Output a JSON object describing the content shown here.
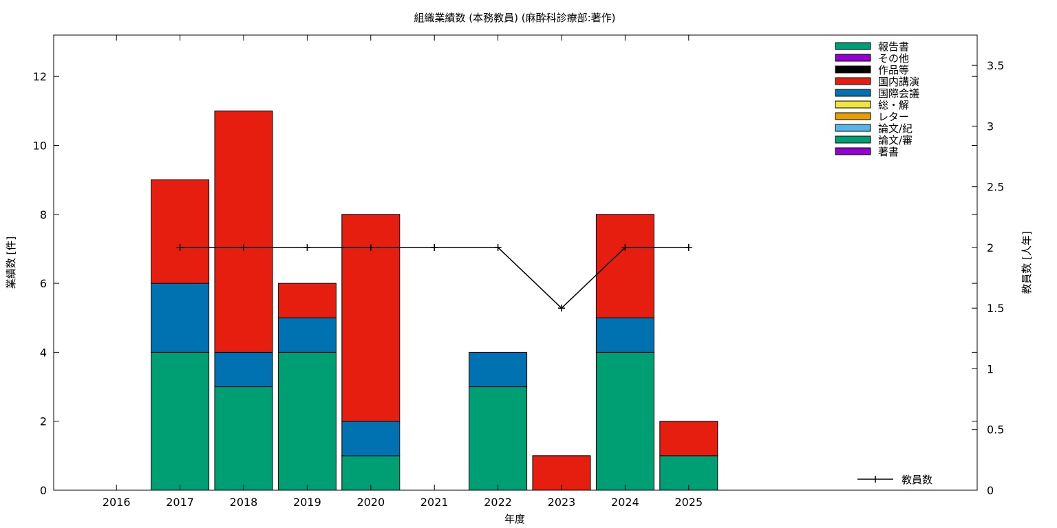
{
  "chart_data": {
    "type": "bar",
    "stacked": true,
    "title": "組織業績数 (本務教員) (麻酔科診療部:著作)",
    "xlabel": "年度",
    "ylabel": "業績数 [件]",
    "y2label": "教員数 [人年]",
    "categories": [
      "2016",
      "2017",
      "2018",
      "2019",
      "2020",
      "2021",
      "2022",
      "2023",
      "2024",
      "2025"
    ],
    "ylim": [
      0,
      13.2
    ],
    "y2lim": [
      0,
      3.75
    ],
    "yticks": [
      0,
      2,
      4,
      6,
      8,
      10,
      12
    ],
    "y2ticks": [
      "0",
      "0.5",
      "1",
      "1.5",
      "2",
      "2.5",
      "3",
      "3.5"
    ],
    "grid": false,
    "legend_position": "top-right",
    "series": [
      {
        "name": "報告書",
        "color": "#009e73",
        "values": [
          0,
          4,
          3,
          4,
          1,
          0,
          3,
          0,
          4,
          1
        ]
      },
      {
        "name": "国際会議",
        "color": "#0072b2",
        "values": [
          0,
          2,
          1,
          1,
          1,
          0,
          1,
          0,
          1,
          0
        ]
      },
      {
        "name": "国内講演",
        "color": "#e51e10",
        "values": [
          0,
          3,
          7,
          1,
          6,
          0,
          0,
          1,
          3,
          1
        ]
      }
    ],
    "legend_entries": [
      {
        "name": "報告書",
        "color": "#009e73"
      },
      {
        "name": "その他",
        "color": "#9400d3"
      },
      {
        "name": "作品等",
        "color": "#000000"
      },
      {
        "name": "国内講演",
        "color": "#e51e10"
      },
      {
        "name": "国際会議",
        "color": "#0072b2"
      },
      {
        "name": "総・解",
        "color": "#f0e442"
      },
      {
        "name": "レター",
        "color": "#e69f00"
      },
      {
        "name": "論文/紀",
        "color": "#56b4e9"
      },
      {
        "name": "論文/審",
        "color": "#009e73"
      },
      {
        "name": "著書",
        "color": "#9400d3"
      }
    ],
    "line_series": {
      "name": "教員数",
      "axis": "y2",
      "color": "#000000",
      "x": [
        "2017",
        "2018",
        "2019",
        "2020",
        "2021",
        "2022",
        "2023",
        "2024",
        "2025"
      ],
      "values": [
        2,
        2,
        2,
        2,
        2,
        2,
        1.5,
        2,
        2
      ]
    }
  }
}
